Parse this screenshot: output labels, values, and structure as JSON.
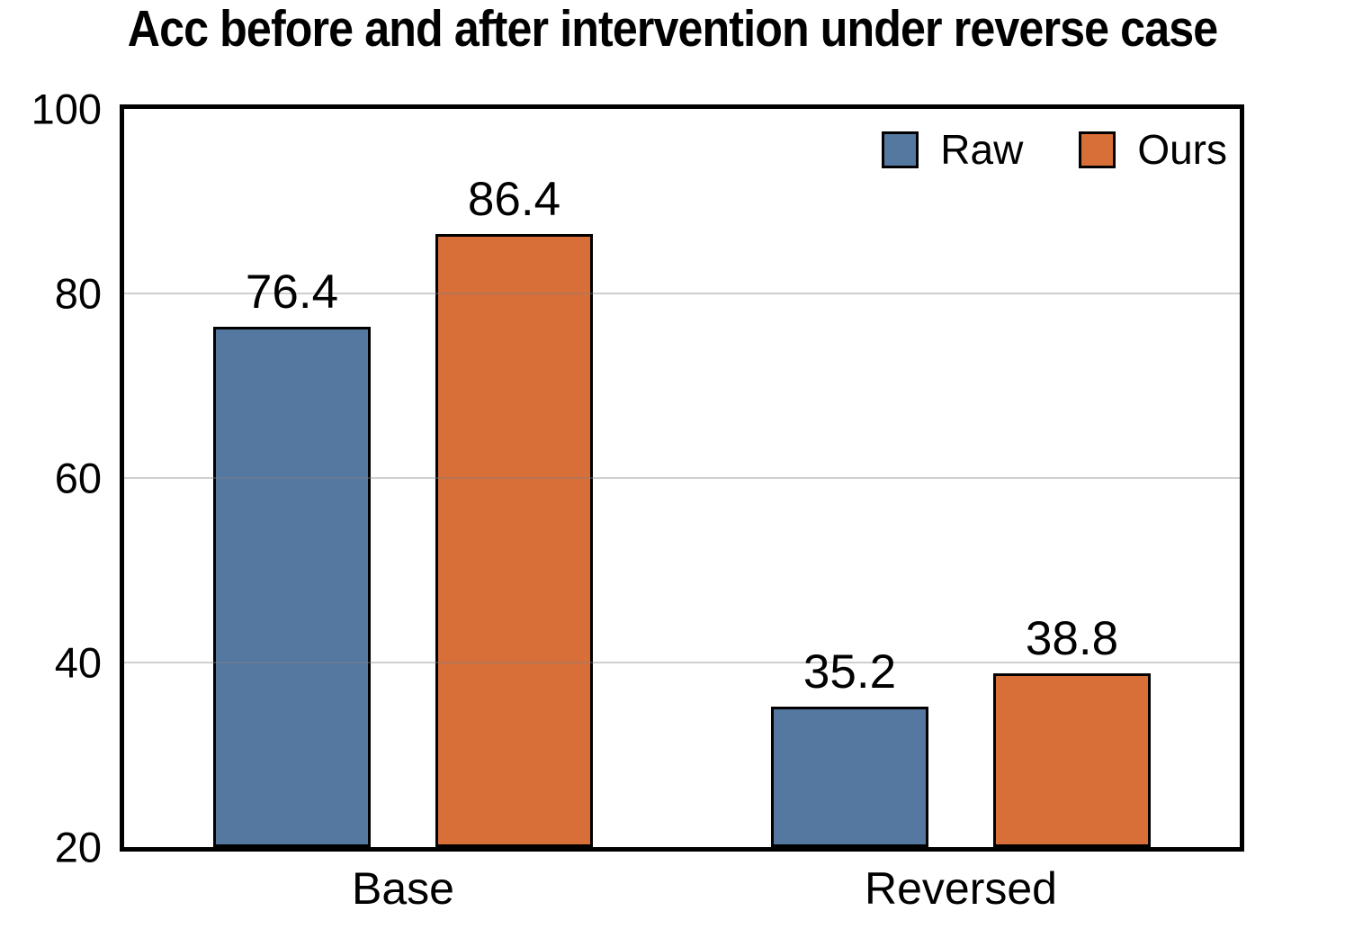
{
  "chart_data": {
    "type": "bar",
    "title": "Acc before and after intervention under reverse case",
    "categories": [
      "Base",
      "Reversed"
    ],
    "series": [
      {
        "name": "Raw",
        "color": "#5578A0",
        "values": [
          76.4,
          35.2
        ],
        "labels": [
          "76.4",
          "35.2"
        ]
      },
      {
        "name": "Ours",
        "color": "#D96F38",
        "values": [
          86.4,
          38.8
        ],
        "labels": [
          "86.4",
          "38.8"
        ]
      }
    ],
    "ylim": [
      20,
      100
    ],
    "yticks": [
      20,
      40,
      60,
      80,
      100
    ],
    "xlabel": "",
    "ylabel": "",
    "grid": true,
    "legend_position": "top-right",
    "colors": {
      "grid": "#c9c9cb",
      "axis": "#000000",
      "background": "#ffffff"
    }
  }
}
